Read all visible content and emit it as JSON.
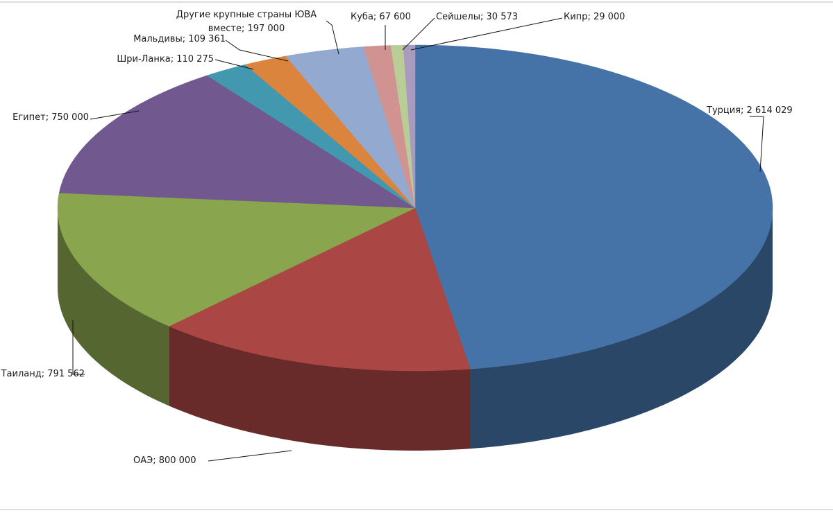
{
  "chart_data": {
    "type": "pie3d",
    "categories": [
      "Турция",
      "ОАЭ",
      "Таиланд",
      "Египет",
      "Шри-Ланка",
      "Мальдивы",
      "Другие крупные страны ЮВА вместе",
      "Куба",
      "Сейшелы",
      "Кипр"
    ],
    "values": [
      2614029,
      800000,
      791562,
      750000,
      110275,
      109361,
      197000,
      67600,
      30573,
      29000
    ],
    "value_labels": [
      "2 614 029",
      "800 000",
      "791 562",
      "750 000",
      "110 275",
      "109 361",
      "197 000",
      "67 600",
      "30 573",
      "29 000"
    ],
    "label_separator": "; ",
    "colors": [
      "#4572a7",
      "#aa4643",
      "#89a54e",
      "#71588f",
      "#4198af",
      "#db843d",
      "#93a9cf",
      "#d19392",
      "#b9cd96",
      "#a99bbd"
    ]
  }
}
